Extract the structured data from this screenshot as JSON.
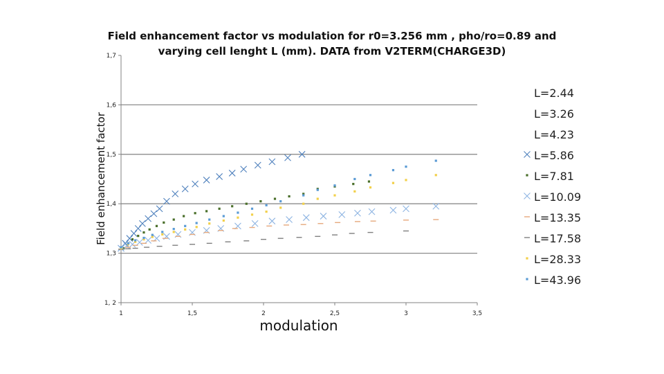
{
  "chart_data": {
    "type": "scatter",
    "title_line1": "Field enhancement factor vs modulation for r0=3.256 mm , pho/ro=0.89 and",
    "title_line2": "varying cell lenght L (mm).  DATA from V2TERM(CHARGE3D)",
    "xlabel": "modulation",
    "ylabel": "Field enhancement factor",
    "xlim": [
      1,
      3.5
    ],
    "ylim": [
      1.2,
      1.7
    ],
    "x_ticks": [
      "1",
      "1,5",
      "2",
      "2,5",
      "3",
      "3,5"
    ],
    "y_ticks": [
      "1, 2",
      "1,3",
      "1,4",
      "1,5",
      "1,6",
      "1,7"
    ],
    "grid": "horizontal",
    "legend_position": "right",
    "series": [
      {
        "name": "L=2.44",
        "color": "#4f81bd",
        "marker": "dot",
        "points": []
      },
      {
        "name": "L=3.26",
        "color": "#c0504d",
        "marker": "dot",
        "points": []
      },
      {
        "name": "L=4.23",
        "color": "#9bbb59",
        "marker": "dot",
        "points": []
      },
      {
        "name": "L=5.86",
        "color": "#4f81bd",
        "marker": "x",
        "points": [
          [
            1.0,
            1.31
          ],
          [
            1.03,
            1.32
          ],
          [
            1.06,
            1.33
          ],
          [
            1.09,
            1.34
          ],
          [
            1.12,
            1.35
          ],
          [
            1.15,
            1.36
          ],
          [
            1.19,
            1.37
          ],
          [
            1.23,
            1.38
          ],
          [
            1.27,
            1.39
          ],
          [
            1.32,
            1.405
          ],
          [
            1.38,
            1.42
          ],
          [
            1.45,
            1.43
          ],
          [
            1.52,
            1.44
          ],
          [
            1.6,
            1.448
          ],
          [
            1.69,
            1.455
          ],
          [
            1.78,
            1.462
          ],
          [
            1.86,
            1.47
          ],
          [
            1.96,
            1.478
          ],
          [
            2.06,
            1.485
          ],
          [
            2.17,
            1.493
          ],
          [
            2.27,
            1.5
          ]
        ]
      },
      {
        "name": "L=7.81",
        "color": "#4a6f2a",
        "marker": "dot",
        "points": [
          [
            1.02,
            1.31
          ],
          [
            1.05,
            1.32
          ],
          [
            1.08,
            1.328
          ],
          [
            1.12,
            1.335
          ],
          [
            1.16,
            1.342
          ],
          [
            1.2,
            1.348
          ],
          [
            1.25,
            1.355
          ],
          [
            1.3,
            1.362
          ],
          [
            1.37,
            1.368
          ],
          [
            1.44,
            1.375
          ],
          [
            1.52,
            1.381
          ],
          [
            1.6,
            1.385
          ],
          [
            1.69,
            1.39
          ],
          [
            1.78,
            1.395
          ],
          [
            1.88,
            1.4
          ],
          [
            1.98,
            1.405
          ],
          [
            2.08,
            1.41
          ],
          [
            2.18,
            1.415
          ],
          [
            2.28,
            1.42
          ],
          [
            2.38,
            1.43
          ],
          [
            2.5,
            1.435
          ],
          [
            2.63,
            1.44
          ],
          [
            2.74,
            1.445
          ]
        ]
      },
      {
        "name": "L=10.09",
        "color": "#8db4e2",
        "marker": "x",
        "points": [
          [
            1.0,
            1.31
          ],
          [
            1.04,
            1.315
          ],
          [
            1.08,
            1.318
          ],
          [
            1.13,
            1.322
          ],
          [
            1.19,
            1.326
          ],
          [
            1.25,
            1.33
          ],
          [
            1.32,
            1.334
          ],
          [
            1.4,
            1.338
          ],
          [
            1.5,
            1.342
          ],
          [
            1.6,
            1.346
          ],
          [
            1.7,
            1.35
          ],
          [
            1.82,
            1.355
          ],
          [
            1.94,
            1.36
          ],
          [
            2.06,
            1.365
          ],
          [
            2.18,
            1.368
          ],
          [
            2.3,
            1.372
          ],
          [
            2.42,
            1.375
          ],
          [
            2.55,
            1.378
          ],
          [
            2.66,
            1.381
          ],
          [
            2.76,
            1.384
          ],
          [
            2.91,
            1.387
          ],
          [
            3.0,
            1.39
          ],
          [
            3.21,
            1.395
          ]
        ]
      },
      {
        "name": "L=13.35",
        "color": "#e6a87c",
        "marker": "dash",
        "points": [
          [
            1.0,
            1.308
          ],
          [
            1.05,
            1.312
          ],
          [
            1.1,
            1.316
          ],
          [
            1.16,
            1.32
          ],
          [
            1.23,
            1.325
          ],
          [
            1.31,
            1.33
          ],
          [
            1.4,
            1.334
          ],
          [
            1.5,
            1.338
          ],
          [
            1.6,
            1.342
          ],
          [
            1.7,
            1.346
          ],
          [
            1.8,
            1.35
          ],
          [
            1.92,
            1.352
          ],
          [
            2.04,
            1.355
          ],
          [
            2.16,
            1.357
          ],
          [
            2.28,
            1.358
          ],
          [
            2.4,
            1.36
          ],
          [
            2.52,
            1.362
          ],
          [
            2.66,
            1.364
          ],
          [
            2.77,
            1.365
          ],
          [
            3.0,
            1.367
          ],
          [
            3.21,
            1.368
          ]
        ]
      },
      {
        "name": "L=17.58",
        "color": "#7f7f7f",
        "marker": "dash",
        "points": [
          [
            1.0,
            1.308
          ],
          [
            1.05,
            1.309
          ],
          [
            1.1,
            1.31
          ],
          [
            1.18,
            1.312
          ],
          [
            1.27,
            1.314
          ],
          [
            1.38,
            1.316
          ],
          [
            1.5,
            1.318
          ],
          [
            1.62,
            1.32
          ],
          [
            1.75,
            1.323
          ],
          [
            1.88,
            1.325
          ],
          [
            2.0,
            1.328
          ],
          [
            2.12,
            1.33
          ],
          [
            2.25,
            1.332
          ],
          [
            2.38,
            1.334
          ],
          [
            2.5,
            1.337
          ],
          [
            2.62,
            1.34
          ],
          [
            2.75,
            1.342
          ],
          [
            3.0,
            1.345
          ]
        ]
      },
      {
        "name": "L=28.33",
        "color": "#f2d04a",
        "marker": "dot",
        "points": [
          [
            1.0,
            1.31
          ],
          [
            1.05,
            1.318
          ],
          [
            1.1,
            1.323
          ],
          [
            1.16,
            1.328
          ],
          [
            1.22,
            1.333
          ],
          [
            1.29,
            1.338
          ],
          [
            1.37,
            1.343
          ],
          [
            1.45,
            1.348
          ],
          [
            1.53,
            1.353
          ],
          [
            1.62,
            1.36
          ],
          [
            1.72,
            1.366
          ],
          [
            1.82,
            1.372
          ],
          [
            1.92,
            1.378
          ],
          [
            2.02,
            1.384
          ],
          [
            2.12,
            1.392
          ],
          [
            2.28,
            1.4
          ],
          [
            2.38,
            1.41
          ],
          [
            2.5,
            1.417
          ],
          [
            2.64,
            1.425
          ],
          [
            2.75,
            1.433
          ],
          [
            2.91,
            1.442
          ],
          [
            3.0,
            1.448
          ],
          [
            3.21,
            1.458
          ]
        ]
      },
      {
        "name": "L=43.96",
        "color": "#5b9bd5",
        "marker": "dot",
        "points": [
          [
            1.0,
            1.312
          ],
          [
            1.05,
            1.32
          ],
          [
            1.1,
            1.326
          ],
          [
            1.16,
            1.331
          ],
          [
            1.22,
            1.337
          ],
          [
            1.29,
            1.343
          ],
          [
            1.37,
            1.349
          ],
          [
            1.45,
            1.355
          ],
          [
            1.53,
            1.361
          ],
          [
            1.62,
            1.368
          ],
          [
            1.72,
            1.375
          ],
          [
            1.82,
            1.382
          ],
          [
            1.92,
            1.39
          ],
          [
            2.02,
            1.397
          ],
          [
            2.12,
            1.405
          ],
          [
            2.28,
            1.417
          ],
          [
            2.38,
            1.428
          ],
          [
            2.5,
            1.437
          ],
          [
            2.64,
            1.45
          ],
          [
            2.75,
            1.458
          ],
          [
            2.91,
            1.468
          ],
          [
            3.0,
            1.475
          ],
          [
            3.21,
            1.487
          ]
        ]
      }
    ]
  }
}
